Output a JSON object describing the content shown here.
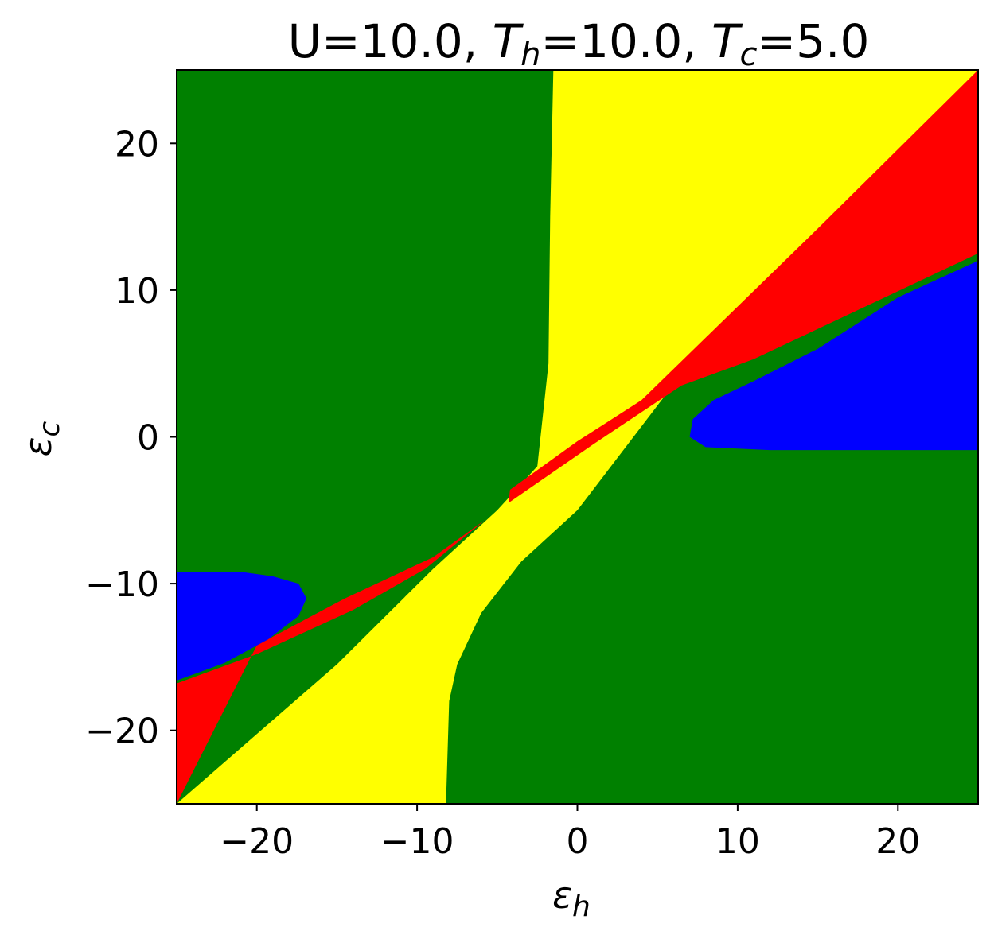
{
  "chart_data": {
    "type": "heatmap",
    "title": {
      "u_part": "U=10.0, ",
      "th_sym": "T",
      "th_sub": "h",
      "th_val": "=10.0, ",
      "tc_sym": "T",
      "tc_sub": "c",
      "tc_val": "=5.0"
    },
    "xlabel": {
      "sym": "ε",
      "sub": "h"
    },
    "ylabel": {
      "sym": "ε",
      "sub": "c"
    },
    "xlim": [
      -25,
      25
    ],
    "ylim": [
      -25,
      25
    ],
    "xticks": [
      {
        "value": -20,
        "label": "−20"
      },
      {
        "value": -10,
        "label": "−10"
      },
      {
        "value": 0,
        "label": "0"
      },
      {
        "value": 10,
        "label": "10"
      },
      {
        "value": 20,
        "label": "20"
      }
    ],
    "yticks": [
      {
        "value": -20,
        "label": "−20"
      },
      {
        "value": -10,
        "label": "−10"
      },
      {
        "value": 0,
        "label": "0"
      },
      {
        "value": 10,
        "label": "10"
      },
      {
        "value": 20,
        "label": "20"
      }
    ],
    "colors": {
      "background": "#008000",
      "yellow": "#ffff00",
      "red": "#ff0000",
      "blue": "#0000ff"
    },
    "regions": [
      {
        "color": "yellow",
        "points": [
          [
            -1.5,
            25
          ],
          [
            25,
            25
          ],
          [
            25,
            24.7
          ],
          [
            7,
            5
          ],
          [
            0,
            -5
          ],
          [
            -3.5,
            -8.5
          ],
          [
            -6,
            -12
          ],
          [
            -7.5,
            -15.5
          ],
          [
            -8,
            -18
          ],
          [
            -8.2,
            -25
          ],
          [
            -25,
            -25
          ],
          [
            -15,
            -15.5
          ],
          [
            -9,
            -9
          ],
          [
            -5,
            -5
          ],
          [
            -2.5,
            -2
          ],
          [
            -1.8,
            5
          ],
          [
            -1.7,
            15
          ]
        ]
      },
      {
        "color": "red",
        "points": [
          [
            25,
            25
          ],
          [
            25,
            12.5
          ],
          [
            11,
            5.3
          ],
          [
            6.5,
            3.5
          ],
          [
            1,
            -0.5
          ],
          [
            -4.3,
            -4.5
          ],
          [
            -4.2,
            -3.6
          ],
          [
            0,
            -0.3
          ],
          [
            4,
            2.5
          ],
          [
            15,
            14.2
          ]
        ]
      },
      {
        "color": "red",
        "points": [
          [
            -25,
            -25
          ],
          [
            -25,
            -16.8
          ],
          [
            -20,
            -14.8
          ],
          [
            -14,
            -11.8
          ],
          [
            -9.5,
            -9
          ],
          [
            -5.8,
            -5.7
          ],
          [
            -6.2,
            -6
          ],
          [
            -9,
            -8.2
          ],
          [
            -14.5,
            -11
          ],
          [
            -20,
            -14.2
          ]
        ]
      },
      {
        "color": "blue",
        "points": [
          [
            25,
            12
          ],
          [
            25,
            -0.9
          ],
          [
            12,
            -0.9
          ],
          [
            8,
            -0.7
          ],
          [
            7,
            0
          ],
          [
            7.2,
            1.2
          ],
          [
            8.5,
            2.5
          ],
          [
            11,
            3.8
          ],
          [
            15,
            6
          ],
          [
            20,
            9.5
          ]
        ]
      },
      {
        "color": "blue",
        "points": [
          [
            -25,
            -9.2
          ],
          [
            -21,
            -9.2
          ],
          [
            -19,
            -9.5
          ],
          [
            -17.4,
            -10
          ],
          [
            -16.9,
            -11
          ],
          [
            -17.4,
            -12.2
          ],
          [
            -19.3,
            -13.8
          ],
          [
            -22,
            -15.4
          ],
          [
            -25,
            -16.6
          ]
        ]
      }
    ]
  }
}
